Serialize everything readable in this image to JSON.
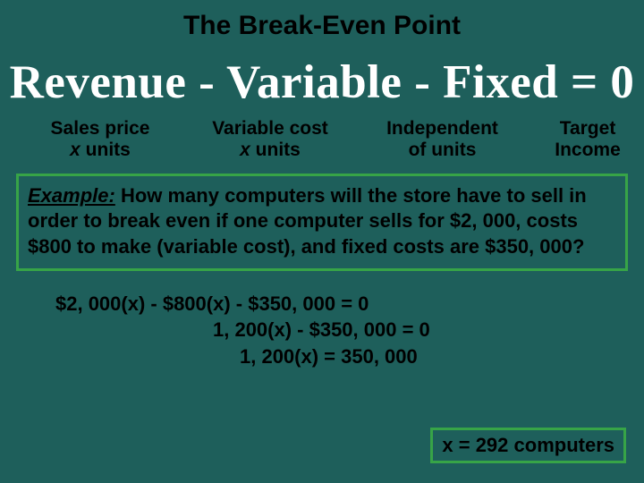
{
  "colors": {
    "background": "#1e5f5b",
    "box_border": "#37a447",
    "equation_text": "#ffffff",
    "body_text": "#000000"
  },
  "title": "The Break-Even Point",
  "equation": "Revenue - Variable - Fixed = 0",
  "labels": {
    "col1_line1": "Sales price",
    "col1_line2_prefix": "x",
    "col1_line2_rest": " units",
    "col2_line1": "Variable cost",
    "col2_line2_prefix": "x",
    "col2_line2_rest": " units",
    "col3_line1": "Independent",
    "col3_line2": "of units",
    "col4_line1": "Target",
    "col4_line2": "Income"
  },
  "example": {
    "label": "Example:",
    "text": "  How many computers will the store have to sell in order to break even if one computer sells for $2, 000, costs $800 to make (variable cost), and fixed costs are $350, 000?"
  },
  "workings": {
    "line1": "$2, 000(x) - $800(x) - $350, 000 = 0",
    "line2": "1, 200(x) - $350, 000 = 0",
    "line3": "1, 200(x) = 350, 000"
  },
  "answer": "x = 292 computers"
}
